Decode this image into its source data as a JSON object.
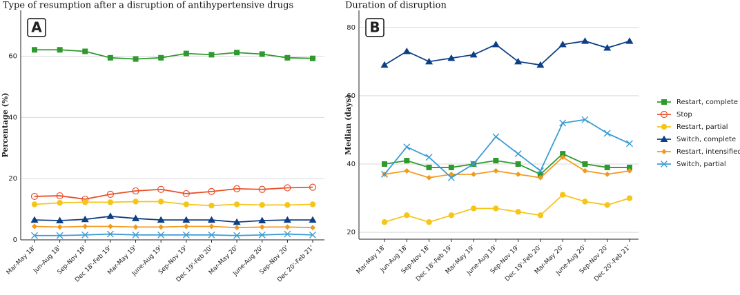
{
  "chart_data": [
    {
      "type": "line",
      "panel_label": "A",
      "title": "Type of resumption after a disruption of antihypertensive drugs",
      "y_label": "Percentage (%)",
      "categories": [
        "Mar-May 18'",
        "Jun-Aug 18'",
        "Sep-Nov 18'",
        "Dec 18'-Feb 19'",
        "Mar-May 19'",
        "June-Aug 19'",
        "Sep-Nov 19'",
        "Dec 19'-Feb 20'",
        "Mar-May 20'",
        "June-Aug 20'",
        "Sep-Nov 20'",
        "Dec 20'-Feb 21'"
      ],
      "ylim": [
        0,
        75
      ],
      "yticks": [
        0,
        20,
        40,
        60
      ],
      "grid": true,
      "series": [
        {
          "name": "Restart, complete",
          "color": "#2e9a2e",
          "marker": "square",
          "values": [
            62.1,
            62.1,
            61.6,
            59.5,
            59.1,
            59.5,
            60.9,
            60.5,
            61.2,
            60.7,
            59.5,
            59.3
          ]
        },
        {
          "name": "Stop",
          "color": "#e8502a",
          "marker": "open-circle",
          "values": [
            14.2,
            14.4,
            13.3,
            14.9,
            16.0,
            16.5,
            15.1,
            15.8,
            16.7,
            16.5,
            17.0,
            17.2
          ]
        },
        {
          "name": "Restart, partial",
          "color": "#f5c518",
          "marker": "circle",
          "values": [
            11.6,
            12.1,
            12.3,
            12.3,
            12.5,
            12.5,
            11.6,
            11.2,
            11.6,
            11.4,
            11.4,
            11.6
          ]
        },
        {
          "name": "Switch, complete",
          "color": "#0d3f86",
          "marker": "triangle",
          "values": [
            6.5,
            6.3,
            6.7,
            7.7,
            7.0,
            6.5,
            6.5,
            6.5,
            5.8,
            6.3,
            6.5,
            6.5
          ]
        },
        {
          "name": "Restart, intensified",
          "color": "#f39a1e",
          "marker": "diamond",
          "values": [
            4.4,
            4.2,
            4.4,
            4.4,
            4.2,
            4.2,
            4.4,
            4.4,
            4.0,
            4.2,
            4.2,
            4.0
          ]
        },
        {
          "name": "Switch, partial",
          "color": "#3b9bd1",
          "marker": "cross",
          "values": [
            1.4,
            1.4,
            1.6,
            1.9,
            1.6,
            1.6,
            1.6,
            1.6,
            1.4,
            1.6,
            1.9,
            1.6
          ]
        }
      ]
    },
    {
      "type": "line",
      "panel_label": "B",
      "title": "Duration of disruption",
      "y_label": "Median (days)",
      "categories": [
        "Mar-May 18'",
        "Jun-Aug 18'",
        "Sep-Nov 18'",
        "Dec 18'-Feb 19'",
        "Mar-May 19'",
        "June-Aug 19'",
        "Sep-Nov 19'",
        "Dec 19'-Feb 20'",
        "Mar-May 20'",
        "June-Aug 20'",
        "Sep-Nov 20'",
        "Dec 20'-Feb 21'"
      ],
      "ylim": [
        18,
        85
      ],
      "yticks": [
        20,
        40,
        60,
        80
      ],
      "grid": true,
      "legend": "right",
      "series": [
        {
          "name": "Restart, complete",
          "color": "#2e9a2e",
          "marker": "square",
          "values": [
            40,
            41,
            39,
            39,
            40,
            41,
            40,
            37,
            43,
            40,
            39,
            39
          ]
        },
        {
          "name": "Stop",
          "color": "#e8502a",
          "marker": "open-circle",
          "values": [
            null,
            null,
            null,
            null,
            null,
            null,
            null,
            null,
            null,
            null,
            null,
            null
          ]
        },
        {
          "name": "Restart, partial",
          "color": "#f5c518",
          "marker": "circle",
          "values": [
            23,
            25,
            23,
            25,
            27,
            27,
            26,
            25,
            31,
            29,
            28,
            30
          ]
        },
        {
          "name": "Switch, complete",
          "color": "#0d3f86",
          "marker": "triangle",
          "values": [
            69,
            73,
            70,
            71,
            72,
            75,
            70,
            69,
            75,
            76,
            74,
            76
          ]
        },
        {
          "name": "Restart, intensified",
          "color": "#f39a1e",
          "marker": "diamond",
          "values": [
            37,
            38,
            36,
            37,
            37,
            38,
            37,
            36,
            42,
            38,
            37,
            38
          ]
        },
        {
          "name": "Switch, partial",
          "color": "#3b9bd1",
          "marker": "cross",
          "values": [
            37,
            45,
            42,
            36,
            40,
            48,
            43,
            38,
            52,
            53,
            49,
            46
          ]
        }
      ]
    }
  ]
}
